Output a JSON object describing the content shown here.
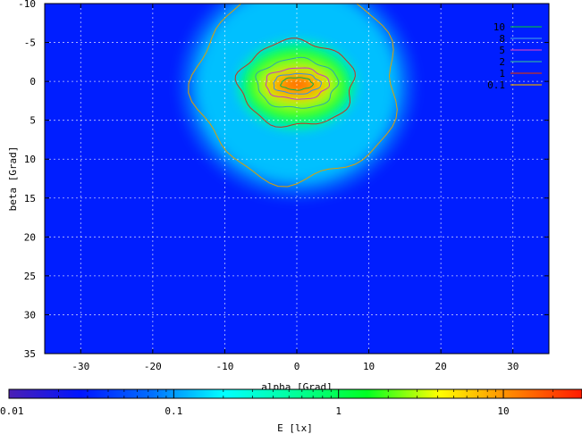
{
  "chart_data": {
    "type": "heatmap",
    "xlabel": "alpha [Grad]",
    "ylabel": "beta [Grad]",
    "colorbar_label": "E [lx]",
    "xlim": [
      -35,
      35
    ],
    "ylim": [
      -10,
      35
    ],
    "y_axis_inverted": true,
    "grid": true,
    "x_ticks": [
      -30,
      -20,
      -10,
      0,
      10,
      20,
      30
    ],
    "y_ticks": [
      -10,
      -5,
      0,
      5,
      10,
      15,
      20,
      25,
      30,
      35
    ],
    "colorbar": {
      "scale": "log",
      "range": [
        0.01,
        30
      ],
      "ticks": [
        {
          "value": 0.01,
          "label": "0.01"
        },
        {
          "value": 0.1,
          "label": "0.1"
        },
        {
          "value": 1,
          "label": "1"
        },
        {
          "value": 10,
          "label": "10"
        }
      ],
      "colors": [
        "#4b1fb4",
        "#0015ff",
        "#0070ff",
        "#00ffff",
        "#00ff99",
        "#00ff22",
        "#ffff00",
        "#ff8800",
        "#ff1a00"
      ]
    },
    "peak": {
      "alpha": 0,
      "beta": 0,
      "value": 20
    },
    "contours": {
      "levels": [
        {
          "label": "10",
          "value": 10,
          "color": "#00b050",
          "alpha_half_width": 2.2,
          "beta_half_height": 0.8
        },
        {
          "label": "8",
          "value": 8,
          "color": "#3a8ee6",
          "alpha_half_width": 3.3,
          "beta_half_height": 1.3
        },
        {
          "label": "5",
          "value": 5,
          "color": "#c13ec9",
          "alpha_half_width": 4.4,
          "beta_half_height": 2.0
        },
        {
          "label": "2",
          "value": 2,
          "color": "#2ea8a8",
          "alpha_half_width": 5.6,
          "beta_half_height": 3.2
        },
        {
          "label": "1",
          "value": 1,
          "color": "#c8321e",
          "alpha_half_width": 8.0,
          "beta_half_height": 5.5
        },
        {
          "label": "0.1",
          "value": 0.1,
          "color": "#e0a000",
          "alpha_half_width": 14.0,
          "beta_half_height": 12.5
        }
      ]
    }
  }
}
